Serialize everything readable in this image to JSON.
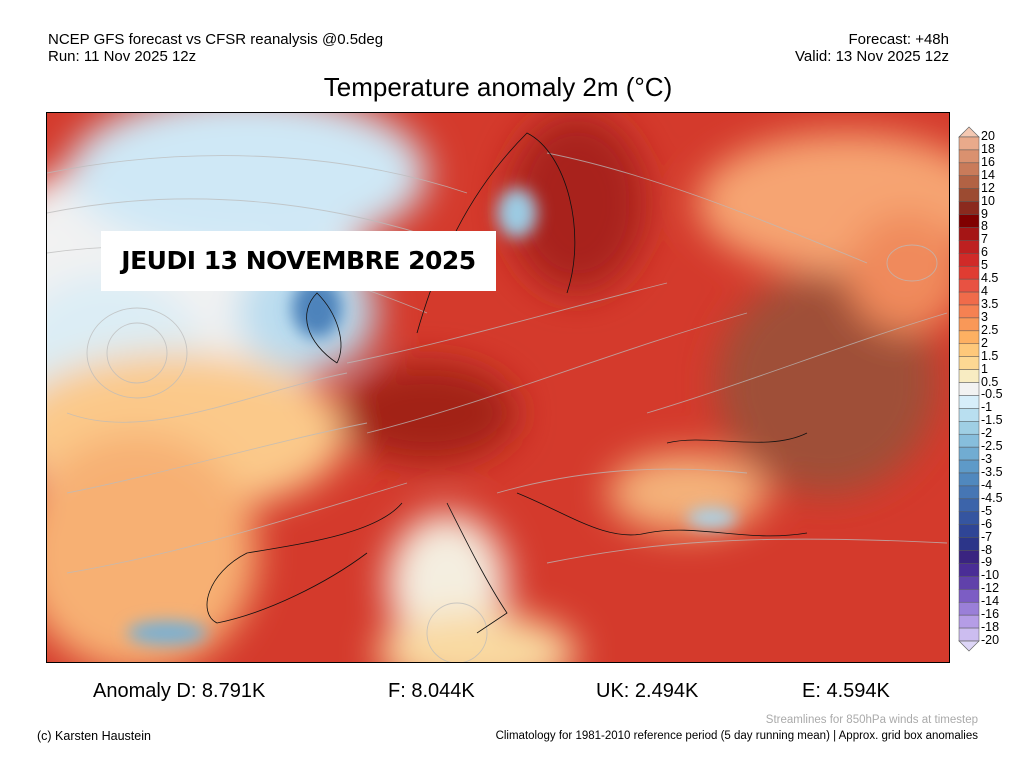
{
  "header": {
    "model_line": "NCEP GFS forecast vs CFSR reanalysis @0.5deg",
    "run_line": "Run: 11 Nov 2025 12z",
    "forecast_line": "Forecast: +48h",
    "valid_line": "Valid: 13 Nov 2025 12z",
    "title": "Temperature anomaly 2m (°C)"
  },
  "map": {
    "date_label": "JEUDI 13 NOVEMBRE 2025"
  },
  "colorbar": {
    "labels": [
      "20",
      "18",
      "16",
      "14",
      "12",
      "10",
      "9",
      "8",
      "7",
      "6",
      "5",
      "4.5",
      "4",
      "3.5",
      "3",
      "2.5",
      "2",
      "1.5",
      "1",
      "0.5",
      "-0.5",
      "-1",
      "-1.5",
      "-2",
      "-2.5",
      "-3",
      "-3.5",
      "-4",
      "-4.5",
      "-5",
      "-6",
      "-7",
      "-8",
      "-9",
      "-10",
      "-12",
      "-14",
      "-16",
      "-18",
      "-20"
    ],
    "top_color": "#f4c8b2",
    "bottom_color": "#ddd5f7",
    "colors": [
      "#e9aa8b",
      "#da916f",
      "#c97b5a",
      "#b26244",
      "#9c4b31",
      "#8b2a1e",
      "#800000",
      "#a51515",
      "#be2020",
      "#d02a28",
      "#e03c32",
      "#e85242",
      "#f06b4a",
      "#f58152",
      "#f99858",
      "#fdb062",
      "#fec87a",
      "#fdd893",
      "#f8ecc2",
      "#f2f2f2",
      "#d7eefa",
      "#b9dff0",
      "#9fcfe4",
      "#87bedc",
      "#71acd2",
      "#5e9ac8",
      "#5088be",
      "#4676b4",
      "#3c64aa",
      "#3555a0",
      "#2f4596",
      "#2c3589",
      "#3a2480",
      "#4a2d96",
      "#6041aa",
      "#7c5dc4",
      "#9a7fd8",
      "#b59de6",
      "#ccbdf0"
    ]
  },
  "stats": {
    "d": "Anomaly D: 8.791K",
    "f": "F: 8.044K",
    "uk": "UK: 2.494K",
    "e": "E: 4.594K"
  },
  "footer": {
    "credit": "(c) Karsten Haustein",
    "streamlines_note": "Streamlines for 850hPa winds at timestep",
    "climatology_note": "Climatology for 1981-2010 reference period (5 day running mean) | Approx. grid box anomalies"
  }
}
